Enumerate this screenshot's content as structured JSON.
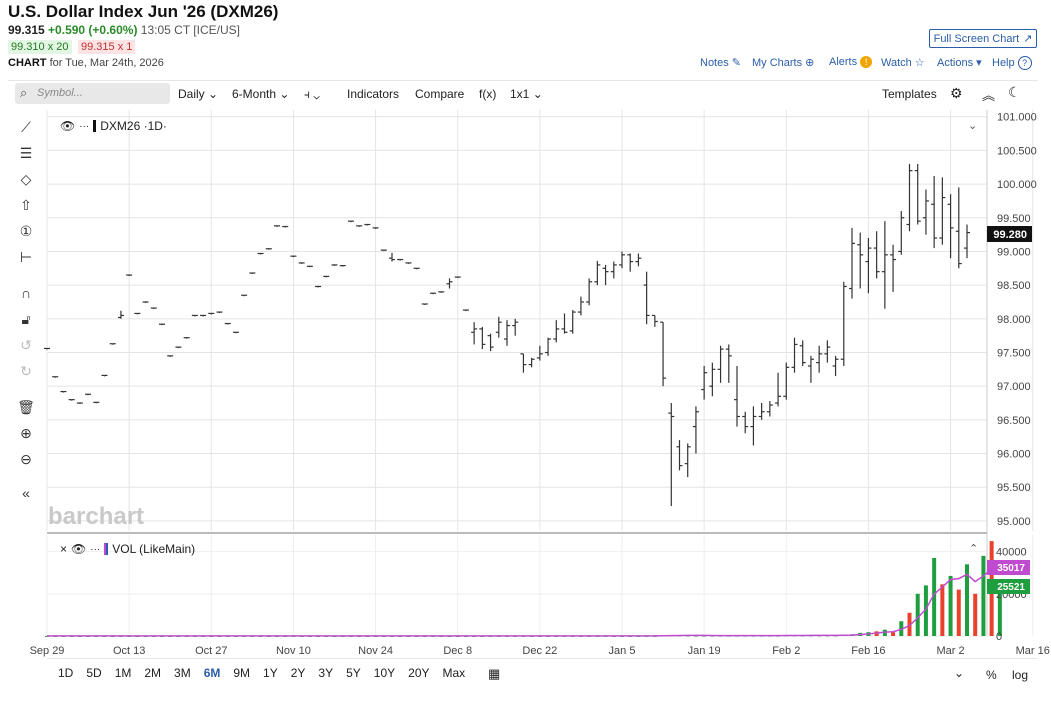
{
  "header": {
    "title": "U.S. Dollar Index Jun '26 (DXM26)",
    "last": "99.315",
    "change": "+0.590 (+0.60%)",
    "time": "13:05 CT [ICE/US]",
    "bid": "99.310 x 20",
    "ask": "99.315 x 1",
    "chart_label": "CHART",
    "chart_for": "for Tue, Mar 24th, 2026",
    "fullscreen": "Full Screen Chart",
    "links": [
      "Notes",
      "My Charts",
      "Alerts",
      "Watch",
      "Actions",
      "Help"
    ]
  },
  "toolbar": {
    "search_placeholder": "Symbol...",
    "period": "Daily",
    "range": "6-Month",
    "indicators": "Indicators",
    "compare": "Compare",
    "fx": "f(x)",
    "layout": "1x1",
    "templates": "Templates"
  },
  "price_pane": {
    "legend": "DXM26 ·1D·",
    "last_label": "99.280",
    "watermark": "barchart"
  },
  "volume_pane": {
    "legend": "VOL (LikeMain)",
    "ma_label": "35017",
    "vol_label": "25521"
  },
  "range_buttons": [
    "1D",
    "5D",
    "1M",
    "2M",
    "3M",
    "6M",
    "9M",
    "1Y",
    "2Y",
    "3Y",
    "5Y",
    "10Y",
    "20Y",
    "Max"
  ],
  "active_range": "6M",
  "bottom_right": [
    "%",
    "log"
  ],
  "colors": {
    "accent": "#2b5ea8",
    "up": "#1e9e3e",
    "down": "#e8412c",
    "ma": "#c04ad0",
    "bar": "#333333"
  },
  "chart_data": [
    {
      "type": "ohlc",
      "x_tick_labels": [
        "Sep 29",
        "Oct 13",
        "Oct 27",
        "Nov 10",
        "Nov 24",
        "Dec 8",
        "Dec 22",
        "Jan 5",
        "Jan 19",
        "Feb 2",
        "Feb 16",
        "Mar 2",
        "Mar 16"
      ],
      "y_tick_labels": [
        "101.000",
        "100.500",
        "100.000",
        "99.500",
        "99.000",
        "98.500",
        "98.000",
        "97.500",
        "97.000",
        "96.500",
        "96.000",
        "95.500",
        "95.000"
      ],
      "ylim": [
        94.85,
        101.1
      ],
      "ohlc": [
        [
          97.56,
          97.56,
          97.56,
          97.56
        ],
        [
          97.14,
          97.14,
          97.14,
          97.14
        ],
        [
          96.92,
          96.92,
          96.92,
          96.92
        ],
        [
          96.8,
          96.8,
          96.8,
          96.8
        ],
        [
          96.75,
          96.75,
          96.75,
          96.75
        ],
        [
          96.88,
          96.88,
          96.88,
          96.88
        ],
        [
          96.76,
          96.76,
          96.76,
          96.76
        ],
        [
          97.16,
          97.16,
          97.16,
          97.16
        ],
        [
          97.63,
          97.63,
          97.63,
          97.63
        ],
        [
          98.02,
          98.12,
          98.0,
          98.05
        ],
        [
          98.65,
          98.65,
          98.65,
          98.65
        ],
        [
          98.08,
          98.08,
          98.08,
          98.08
        ],
        [
          98.25,
          98.25,
          98.25,
          98.25
        ],
        [
          98.16,
          98.16,
          98.16,
          98.16
        ],
        [
          97.92,
          97.92,
          97.92,
          97.92
        ],
        [
          97.45,
          97.45,
          97.45,
          97.45
        ],
        [
          97.58,
          97.58,
          97.58,
          97.58
        ],
        [
          97.72,
          97.72,
          97.72,
          97.72
        ],
        [
          98.05,
          98.05,
          98.05,
          98.05
        ],
        [
          98.05,
          98.05,
          98.05,
          98.05
        ],
        [
          98.08,
          98.08,
          98.08,
          98.08
        ],
        [
          98.1,
          98.1,
          98.1,
          98.1
        ],
        [
          97.93,
          97.93,
          97.93,
          97.93
        ],
        [
          97.8,
          97.8,
          97.8,
          97.8
        ],
        [
          98.35,
          98.35,
          98.35,
          98.35
        ],
        [
          98.68,
          98.68,
          98.68,
          98.68
        ],
        [
          98.97,
          98.97,
          98.97,
          98.97
        ],
        [
          99.04,
          99.04,
          99.04,
          99.04
        ],
        [
          99.38,
          99.38,
          99.38,
          99.38
        ],
        [
          99.37,
          99.37,
          99.37,
          99.37
        ],
        [
          98.93,
          98.93,
          98.93,
          98.93
        ],
        [
          98.83,
          98.83,
          98.83,
          98.83
        ],
        [
          98.78,
          98.78,
          98.78,
          98.78
        ],
        [
          98.48,
          98.48,
          98.48,
          98.48
        ],
        [
          98.63,
          98.63,
          98.63,
          98.63
        ],
        [
          98.8,
          98.8,
          98.8,
          98.8
        ],
        [
          98.79,
          98.79,
          98.79,
          98.79
        ],
        [
          99.45,
          99.45,
          99.45,
          99.45
        ],
        [
          99.38,
          99.38,
          99.38,
          99.38
        ],
        [
          99.4,
          99.4,
          99.4,
          99.4
        ],
        [
          99.35,
          99.35,
          99.35,
          99.35
        ],
        [
          99.02,
          99.02,
          99.02,
          99.02
        ],
        [
          98.9,
          98.98,
          98.85,
          98.88
        ],
        [
          98.88,
          98.88,
          98.88,
          98.88
        ],
        [
          98.83,
          98.83,
          98.83,
          98.83
        ],
        [
          98.75,
          98.75,
          98.75,
          98.75
        ],
        [
          98.22,
          98.22,
          98.22,
          98.22
        ],
        [
          98.38,
          98.38,
          98.38,
          98.38
        ],
        [
          98.4,
          98.4,
          98.4,
          98.4
        ],
        [
          98.52,
          98.6,
          98.45,
          98.55
        ],
        [
          98.62,
          98.62,
          98.62,
          98.62
        ],
        [
          98.13,
          98.13,
          98.13,
          98.13
        ],
        [
          97.8,
          97.95,
          97.62,
          97.85
        ],
        [
          97.85,
          97.88,
          97.55,
          97.62
        ],
        [
          97.75,
          97.78,
          97.52,
          97.58
        ],
        [
          97.8,
          98.03,
          97.72,
          97.95
        ],
        [
          97.7,
          97.98,
          97.6,
          97.9
        ],
        [
          97.9,
          98.0,
          97.75,
          97.95
        ],
        [
          97.48,
          97.48,
          97.2,
          97.32
        ],
        [
          97.32,
          97.42,
          97.28,
          97.4
        ],
        [
          97.42,
          97.6,
          97.38,
          97.48
        ],
        [
          97.5,
          97.72,
          97.45,
          97.7
        ],
        [
          97.7,
          97.98,
          97.65,
          97.85
        ],
        [
          97.85,
          98.08,
          97.78,
          97.8
        ],
        [
          97.82,
          98.13,
          97.78,
          98.1
        ],
        [
          98.1,
          98.33,
          98.05,
          98.25
        ],
        [
          98.25,
          98.6,
          98.2,
          98.55
        ],
        [
          98.55,
          98.86,
          98.5,
          98.8
        ],
        [
          98.75,
          98.8,
          98.5,
          98.7
        ],
        [
          98.7,
          98.85,
          98.6,
          98.8
        ],
        [
          98.8,
          99.0,
          98.75,
          98.95
        ],
        [
          98.95,
          98.97,
          98.7,
          98.85
        ],
        [
          98.85,
          98.97,
          98.78,
          98.9
        ],
        [
          98.5,
          98.7,
          97.92,
          98.05
        ],
        [
          98.05,
          98.05,
          97.88,
          97.96
        ],
        [
          97.95,
          97.95,
          97.0,
          97.12
        ],
        [
          96.6,
          96.75,
          95.22,
          96.55
        ],
        [
          96.1,
          96.2,
          95.75,
          95.82
        ],
        [
          95.85,
          96.15,
          95.65,
          96.1
        ],
        [
          96.4,
          96.7,
          96.0,
          96.62
        ],
        [
          96.95,
          97.3,
          96.8,
          97.2
        ],
        [
          97.0,
          97.35,
          96.85,
          97.25
        ],
        [
          97.25,
          97.6,
          97.05,
          97.55
        ],
        [
          97.55,
          97.62,
          97.05,
          97.45
        ],
        [
          96.8,
          97.3,
          96.4,
          96.55
        ],
        [
          96.55,
          96.62,
          96.3,
          96.4
        ],
        [
          96.4,
          96.7,
          96.12,
          96.55
        ],
        [
          96.55,
          96.75,
          96.5,
          96.62
        ],
        [
          96.62,
          96.78,
          96.55,
          96.72
        ],
        [
          96.75,
          97.2,
          96.7,
          96.85
        ],
        [
          96.85,
          97.35,
          96.8,
          97.28
        ],
        [
          97.28,
          97.72,
          97.2,
          97.62
        ],
        [
          97.6,
          97.68,
          97.3,
          97.35
        ],
        [
          97.3,
          97.45,
          97.05,
          97.4
        ],
        [
          97.35,
          97.6,
          97.2,
          97.48
        ],
        [
          97.48,
          97.68,
          97.35,
          97.58
        ],
        [
          97.3,
          97.45,
          97.15,
          97.4
        ],
        [
          97.4,
          98.55,
          97.3,
          98.48
        ],
        [
          98.45,
          99.35,
          98.3,
          99.12
        ],
        [
          99.1,
          99.28,
          98.45,
          98.95
        ],
        [
          98.85,
          99.2,
          98.38,
          99.05
        ],
        [
          99.05,
          99.3,
          98.6,
          98.7
        ],
        [
          98.7,
          99.45,
          98.15,
          98.95
        ],
        [
          98.95,
          99.1,
          98.4,
          98.88
        ],
        [
          99.0,
          99.6,
          98.95,
          99.5
        ],
        [
          99.4,
          100.3,
          99.3,
          100.2
        ],
        [
          100.2,
          100.3,
          99.4,
          99.45
        ],
        [
          99.5,
          99.92,
          99.25,
          99.75
        ],
        [
          99.7,
          100.12,
          99.05,
          99.2
        ],
        [
          99.2,
          100.1,
          99.1,
          99.8
        ],
        [
          99.7,
          99.85,
          98.9,
          99.35
        ],
        [
          99.3,
          99.95,
          98.75,
          98.82
        ],
        [
          99.05,
          99.4,
          98.9,
          99.28
        ]
      ]
    },
    {
      "type": "bar",
      "name": "VOL (LikeMain)",
      "y_tick_labels": [
        "40000",
        "20000",
        "0"
      ],
      "ylim": [
        0,
        46000
      ],
      "volume": [
        40,
        40,
        40,
        40,
        40,
        40,
        40,
        40,
        40,
        40,
        40,
        40,
        40,
        40,
        40,
        40,
        40,
        40,
        40,
        40,
        40,
        40,
        40,
        40,
        40,
        40,
        40,
        40,
        40,
        40,
        40,
        40,
        40,
        40,
        40,
        40,
        40,
        40,
        40,
        40,
        40,
        40,
        40,
        40,
        40,
        40,
        40,
        40,
        40,
        40,
        40,
        40,
        40,
        40,
        40,
        60,
        60,
        60,
        60,
        60,
        60,
        60,
        60,
        60,
        60,
        60,
        60,
        60,
        60,
        60,
        60,
        60,
        60,
        60,
        60,
        300,
        400,
        300,
        250,
        200,
        200,
        200,
        200,
        200,
        200,
        200,
        200,
        200,
        200,
        200,
        300,
        300,
        300,
        300,
        300,
        300,
        300,
        500,
        800,
        1500,
        1800,
        2200,
        3000,
        1800,
        7000,
        11000,
        20000,
        24000,
        37000,
        24500,
        28500,
        22000,
        34000,
        20000,
        38000,
        45000,
        25521
      ],
      "direction": [
        "up",
        "up",
        "up",
        "up",
        "up",
        "up",
        "up",
        "up",
        "up",
        "up",
        "up",
        "up",
        "up",
        "up",
        "up",
        "up",
        "up",
        "up",
        "up",
        "up",
        "up",
        "up",
        "up",
        "up",
        "up",
        "up",
        "up",
        "up",
        "up",
        "up",
        "up",
        "up",
        "up",
        "up",
        "up",
        "up",
        "up",
        "up",
        "up",
        "up",
        "up",
        "up",
        "up",
        "up",
        "up",
        "up",
        "up",
        "up",
        "up",
        "up",
        "up",
        "up",
        "up",
        "up",
        "up",
        "up",
        "up",
        "up",
        "up",
        "up",
        "up",
        "up",
        "up",
        "up",
        "up",
        "up",
        "up",
        "up",
        "up",
        "up",
        "up",
        "up",
        "up",
        "up",
        "up",
        "up",
        "up",
        "up",
        "up",
        "up",
        "up",
        "up",
        "up",
        "up",
        "up",
        "up",
        "up",
        "up",
        "up",
        "up",
        "up",
        "up",
        "up",
        "up",
        "up",
        "up",
        "up",
        "up",
        "up",
        "up",
        "up",
        "down",
        "up",
        "down",
        "up",
        "down",
        "up",
        "up",
        "up",
        "down",
        "up",
        "down",
        "up",
        "down",
        "up",
        "down",
        "up"
      ],
      "ma_last": 35017
    }
  ]
}
